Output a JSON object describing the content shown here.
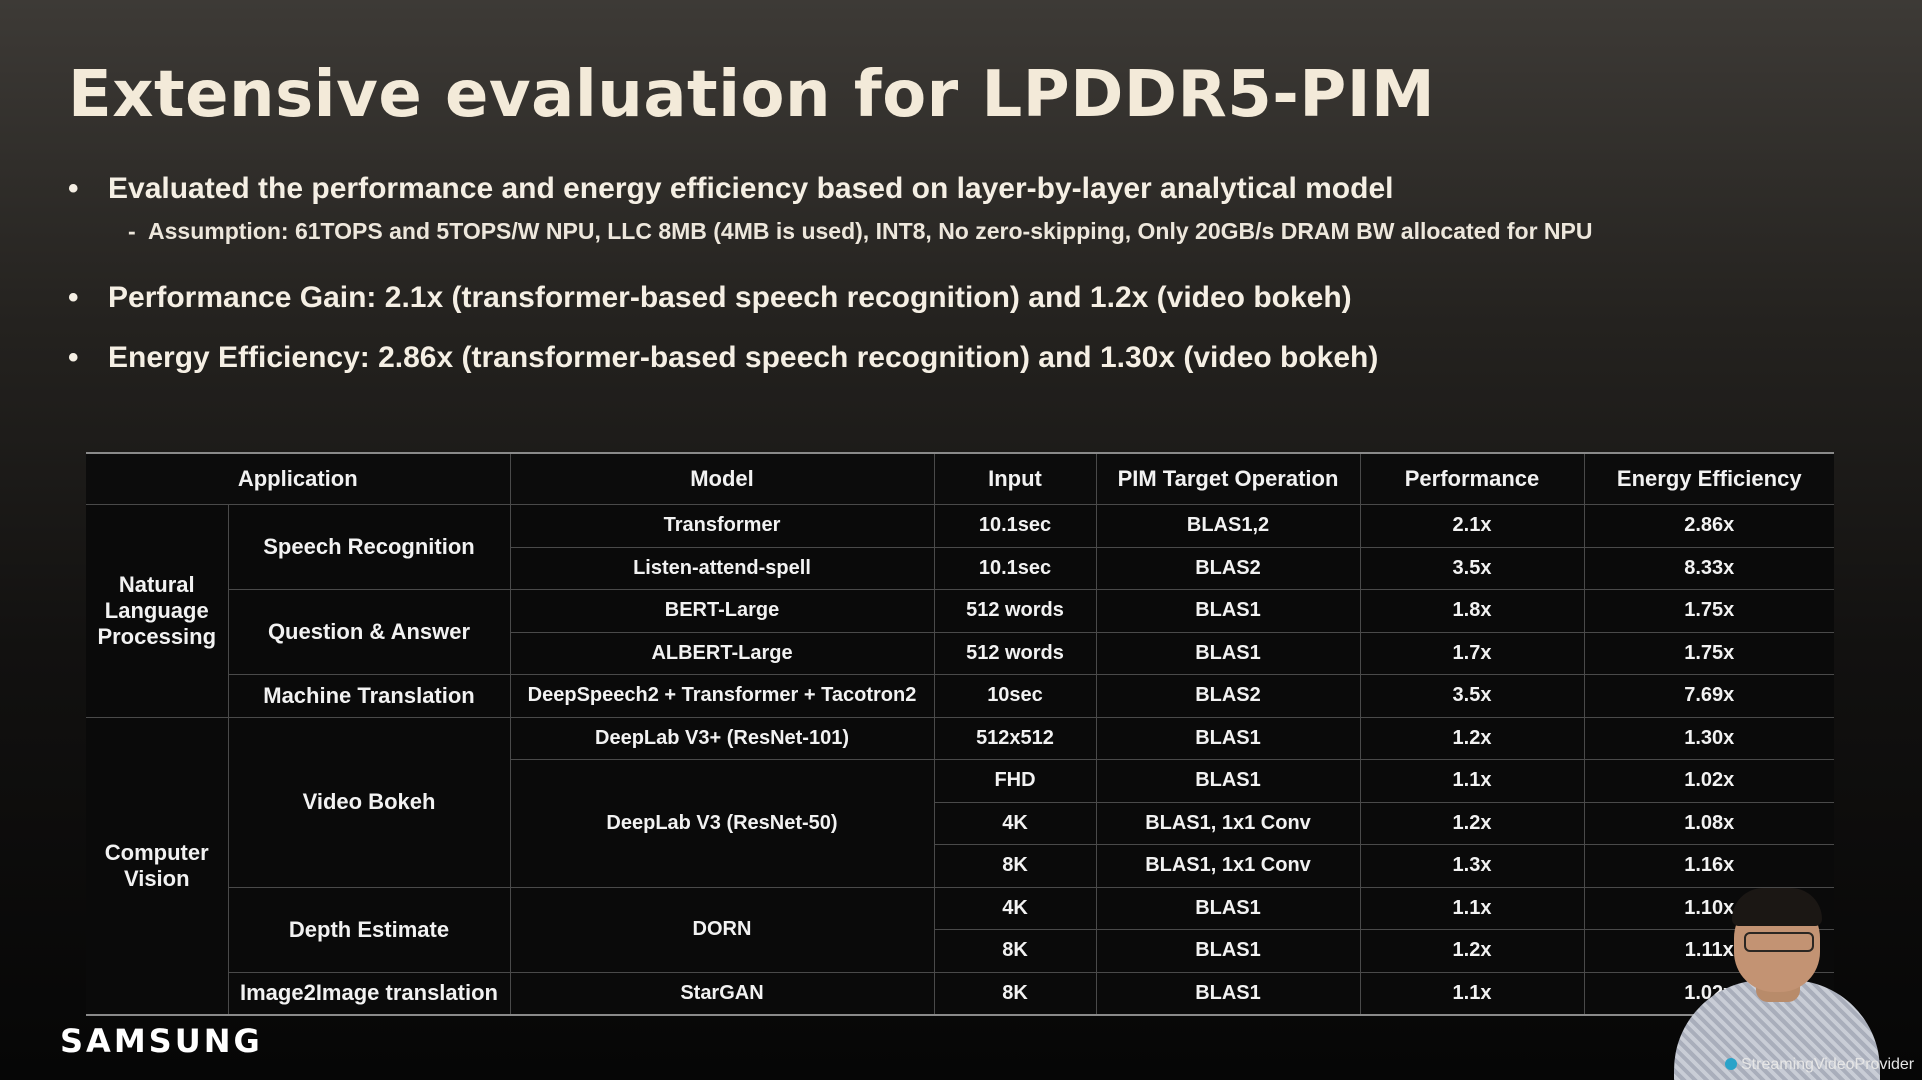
{
  "slide": {
    "title": "Extensive evaluation for LPDDR5-PIM",
    "bullets": {
      "b1": "Evaluated the performance and energy efficiency based on layer-by-layer analytical model",
      "b1_sub": "Assumption:  61TOPS and 5TOPS/W NPU, LLC 8MB (4MB is used), INT8, No zero-skipping, Only 20GB/s DRAM BW allocated for NPU",
      "b2": "Performance Gain: 2.1x (transformer-based speech recognition) and 1.2x (video bokeh)",
      "b3": "Energy Efficiency: 2.86x (transformer-based speech recognition) and 1.30x (video bokeh)"
    },
    "bullet_glyph": "•",
    "sub_glyph": "-"
  },
  "table": {
    "headers": {
      "application": "Application",
      "model": "Model",
      "input": "Input",
      "pim": "PIM Target Operation",
      "performance": "Performance",
      "energy": "Energy Efficiency"
    },
    "groups": {
      "nlp": "Natural Language Processing",
      "cv": "Computer Vision"
    },
    "apps": {
      "speech": "Speech Recognition",
      "qa": "Question & Answer",
      "mt": "Machine Translation",
      "bokeh": "Video Bokeh",
      "depth": "Depth Estimate",
      "i2i": "Image2Image translation"
    },
    "models": {
      "transformer": "Transformer",
      "las": "Listen-attend-spell",
      "bert": "BERT-Large",
      "albert": "ALBERT-Large",
      "deepspeech": "DeepSpeech2 + Transformer + Tacotron2",
      "deeplab101": "DeepLab V3+ (ResNet-101)",
      "deeplab50": "DeepLab V3 (ResNet-50)",
      "dorn": "DORN",
      "stargan": "StarGAN"
    },
    "rows": [
      {
        "input": "10.1sec",
        "pim": "BLAS1,2",
        "performance": "2.1x",
        "energy": "2.86x"
      },
      {
        "input": "10.1sec",
        "pim": "BLAS2",
        "performance": "3.5x",
        "energy": "8.33x"
      },
      {
        "input": "512 words",
        "pim": "BLAS1",
        "performance": "1.8x",
        "energy": "1.75x"
      },
      {
        "input": "512 words",
        "pim": "BLAS1",
        "performance": "1.7x",
        "energy": "1.75x"
      },
      {
        "input": "10sec",
        "pim": "BLAS2",
        "performance": "3.5x",
        "energy": "7.69x"
      },
      {
        "input": "512x512",
        "pim": "BLAS1",
        "performance": "1.2x",
        "energy": "1.30x"
      },
      {
        "input": "FHD",
        "pim": "BLAS1",
        "performance": "1.1x",
        "energy": "1.02x"
      },
      {
        "input": "4K",
        "pim": "BLAS1, 1x1 Conv",
        "performance": "1.2x",
        "energy": "1.08x"
      },
      {
        "input": "8K",
        "pim": "BLAS1, 1x1 Conv",
        "performance": "1.3x",
        "energy": "1.16x"
      },
      {
        "input": "4K",
        "pim": "BLAS1",
        "performance": "1.1x",
        "energy": "1.10x"
      },
      {
        "input": "8K",
        "pim": "BLAS1",
        "performance": "1.2x",
        "energy": "1.11x"
      },
      {
        "input": "8K",
        "pim": "BLAS1",
        "performance": "1.1x",
        "energy": "1.02x"
      }
    ]
  },
  "branding": {
    "logo": "SAMSUNG",
    "watermark": "StreamingVideoProvider",
    "watermark_icon": "play-circle-icon"
  },
  "colors": {
    "title": "#f3ead9",
    "text": "#f2f2f2",
    "table_bg": "#0a0a0a",
    "grid": "#4a4a4a",
    "rule": "#8a8a8a"
  }
}
